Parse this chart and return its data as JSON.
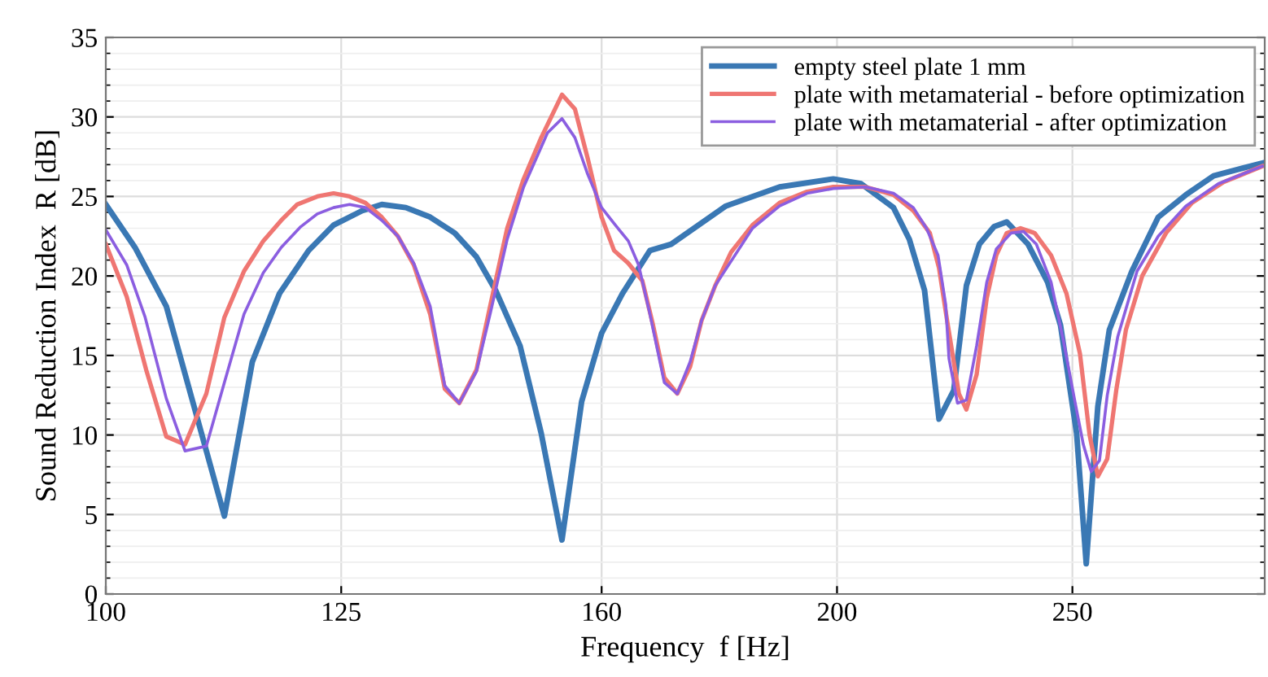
{
  "chart_data": {
    "type": "line",
    "xlabel": "Frequency  f [Hz]",
    "ylabel": "Sound Reduction Index  R [dB]",
    "log": "x",
    "xlim": [
      100,
      300
    ],
    "xticks": [
      100,
      125,
      160,
      200,
      250
    ],
    "ylim": [
      0,
      35
    ],
    "yticks": [
      0,
      5,
      10,
      15,
      20,
      25,
      30,
      35
    ],
    "grid": true,
    "legend": "top right",
    "line_style": "solid",
    "marker": "none",
    "series": [
      {
        "name": "empty steel plate 1 mm",
        "color": "#3a78b4",
        "x": [
          100,
          102.8,
          105.9,
          111.9,
          114.9,
          117.9,
          121.2,
          124.1,
          127.5,
          129.9,
          132.9,
          136.0,
          139.2,
          142.1,
          144.7,
          148.1,
          151.1,
          154.1,
          157.0,
          160.0,
          163.2,
          167.5,
          170.9,
          180.0,
          189.4,
          199.3,
          204.6,
          211.0,
          214.2,
          217.3,
          220.3,
          223.4,
          226.1,
          228.9,
          232.1,
          234.9,
          239.7,
          244.2,
          247.2,
          251.0,
          253.3,
          256.1,
          258.9,
          264.5,
          271.2,
          278.4,
          285.8,
          299.3
        ],
        "values": [
          24.5,
          21.8,
          18.1,
          4.9,
          14.6,
          18.9,
          21.6,
          23.2,
          24.1,
          24.5,
          24.3,
          23.7,
          22.7,
          21.2,
          19.1,
          15.6,
          10.1,
          3.4,
          12.1,
          16.4,
          18.9,
          21.6,
          22.0,
          24.4,
          25.6,
          26.1,
          25.8,
          24.3,
          22.3,
          19.1,
          11.0,
          12.8,
          19.4,
          22.0,
          23.1,
          23.4,
          22.0,
          19.6,
          16.9,
          10.1,
          1.9,
          11.8,
          16.6,
          20.3,
          23.7,
          25.1,
          26.3,
          27.1
        ]
      },
      {
        "name": "plate with metamaterial - before optimization",
        "color": "#ef7672",
        "x": [
          100,
          102.0,
          103.9,
          105.9,
          107.8,
          110.0,
          111.9,
          114.0,
          116.1,
          118.1,
          119.9,
          122.2,
          124.1,
          126.0,
          127.9,
          129.9,
          131.9,
          133.9,
          136.0,
          137.9,
          139.8,
          142.1,
          144.0,
          146.3,
          148.6,
          151.1,
          154.1,
          156.0,
          157.9,
          160.0,
          161.9,
          164.1,
          166.3,
          168.0,
          169.8,
          171.9,
          174.0,
          175.9,
          178.2,
          180.9,
          184.6,
          189.4,
          194.4,
          199.3,
          205.5,
          211.0,
          215.0,
          218.4,
          220.3,
          222.0,
          224.5,
          226.1,
          228.3,
          230.5,
          232.6,
          234.9,
          238.0,
          241.2,
          245.0,
          248.6,
          251.8,
          254.1,
          256.1,
          258.4,
          260.6,
          263.0,
          267.1,
          273.2,
          280.0,
          288.5,
          299.3
        ],
        "values": [
          22.0,
          18.7,
          14.1,
          9.9,
          9.4,
          12.6,
          17.4,
          20.3,
          22.2,
          23.5,
          24.5,
          25.0,
          25.2,
          25.0,
          24.6,
          23.7,
          22.5,
          20.7,
          17.6,
          12.9,
          12.0,
          14.1,
          18.2,
          23.0,
          26.1,
          28.7,
          31.4,
          30.5,
          27.4,
          23.7,
          21.6,
          20.8,
          19.7,
          16.9,
          13.6,
          12.6,
          14.3,
          17.2,
          19.4,
          21.5,
          23.2,
          24.6,
          25.3,
          25.6,
          25.6,
          25.1,
          24.1,
          22.7,
          20.5,
          17.2,
          12.6,
          11.6,
          13.8,
          18.6,
          21.3,
          22.7,
          23.0,
          22.7,
          21.3,
          18.9,
          15.1,
          10.0,
          7.4,
          8.5,
          12.8,
          16.6,
          20.0,
          22.7,
          24.6,
          25.9,
          26.9
        ]
      },
      {
        "name": "plate with metamaterial - after optimization",
        "color": "#8b5ee0",
        "x": [
          100,
          102.0,
          103.8,
          105.9,
          107.8,
          110.0,
          111.9,
          114.0,
          116.1,
          118.1,
          120.3,
          122.2,
          124.1,
          126.0,
          127.9,
          129.9,
          131.9,
          133.9,
          136.0,
          137.9,
          139.8,
          142.1,
          144.0,
          146.3,
          148.6,
          152.0,
          154.1,
          156.0,
          157.9,
          160.0,
          161.9,
          164.1,
          165.7,
          167.5,
          169.8,
          171.9,
          174.0,
          175.9,
          178.2,
          184.6,
          189.4,
          194.4,
          199.3,
          205.5,
          211.0,
          215.0,
          217.7,
          220.1,
          221.7,
          222.4,
          224.2,
          226.1,
          228.3,
          230.5,
          232.6,
          235.9,
          238.7,
          241.6,
          245.0,
          247.9,
          250.6,
          252.6,
          254.5,
          256.5,
          258.4,
          261.0,
          265.8,
          271.2,
          278.4,
          287.1,
          299.3
        ],
        "values": [
          22.9,
          20.7,
          17.4,
          12.3,
          9.0,
          9.3,
          13.3,
          17.6,
          20.2,
          21.8,
          23.1,
          23.9,
          24.3,
          24.5,
          24.3,
          23.5,
          22.5,
          20.8,
          18.1,
          13.1,
          12.0,
          14.0,
          17.7,
          22.3,
          25.6,
          29.0,
          29.9,
          28.7,
          26.4,
          24.3,
          23.3,
          22.2,
          20.7,
          17.6,
          13.3,
          12.6,
          14.6,
          17.2,
          19.4,
          23.0,
          24.4,
          25.2,
          25.5,
          25.6,
          25.2,
          24.3,
          23.0,
          21.3,
          18.2,
          14.8,
          12.0,
          12.2,
          15.6,
          19.6,
          21.7,
          22.7,
          22.8,
          22.0,
          19.6,
          15.9,
          12.1,
          9.4,
          7.7,
          8.4,
          12.5,
          16.2,
          20.3,
          22.5,
          24.4,
          25.8,
          26.9
        ]
      }
    ]
  }
}
